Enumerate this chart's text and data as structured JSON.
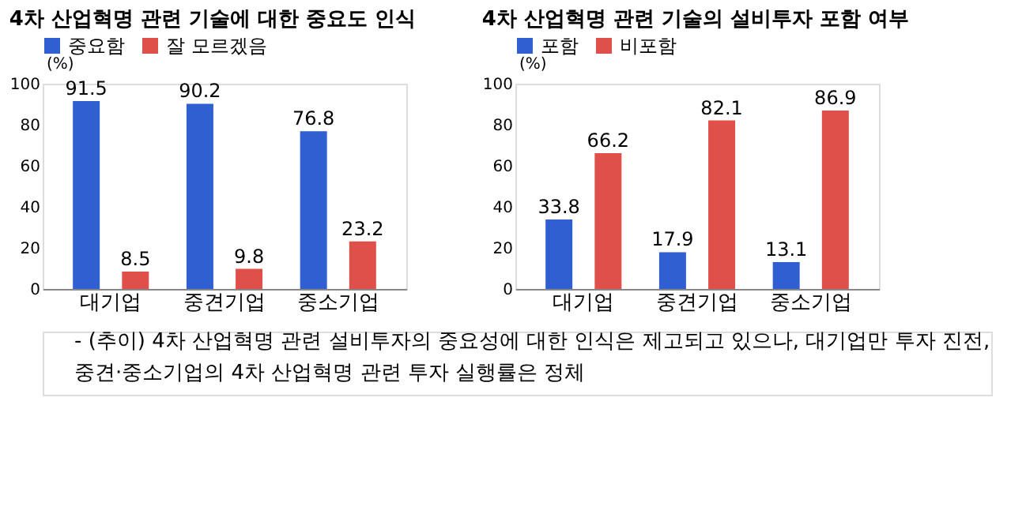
{
  "chart_data": [
    {
      "type": "bar",
      "title": "4차 산업혁명 관련 기술에 대한 중요도 인식",
      "ylabel": "(%)",
      "categories": [
        "대기업",
        "중견기업",
        "중소기업"
      ],
      "series": [
        {
          "name": "중요함",
          "color": "#2f5fd0",
          "values": [
            91.5,
            90.2,
            76.8
          ]
        },
        {
          "name": "잘 모르겠음",
          "color": "#e0504a",
          "values": [
            8.5,
            9.8,
            23.2
          ]
        }
      ],
      "ylim": [
        0,
        100
      ],
      "yticks": [
        0,
        20,
        40,
        60,
        80,
        100
      ],
      "legend": "top",
      "data_labels": true,
      "annotations": [
        "- (추이) 4차 산업혁명 관련 설비투자의 중요성에 대한 인식은 제고되고 있으나, 대기업만 투자 진전, 중견·중소기업의 4차 산업혁명 관련 투자 실행률은 정체"
      ]
    },
    {
      "type": "bar",
      "title": "4차 산업혁명 관련 기술의 설비투자 포함 여부",
      "ylabel": "(%)",
      "categories": [
        "대기업",
        "중견기업",
        "중소기업"
      ],
      "series": [
        {
          "name": "포함",
          "color": "#2f5fd0",
          "values": [
            33.8,
            17.9,
            13.1
          ]
        },
        {
          "name": "비포함",
          "color": "#e0504a",
          "values": [
            66.2,
            82.1,
            86.9
          ]
        }
      ],
      "ylim": [
        0,
        100
      ],
      "yticks": [
        0,
        20,
        40,
        60,
        80,
        100
      ],
      "legend": "top",
      "data_labels": true
    }
  ]
}
